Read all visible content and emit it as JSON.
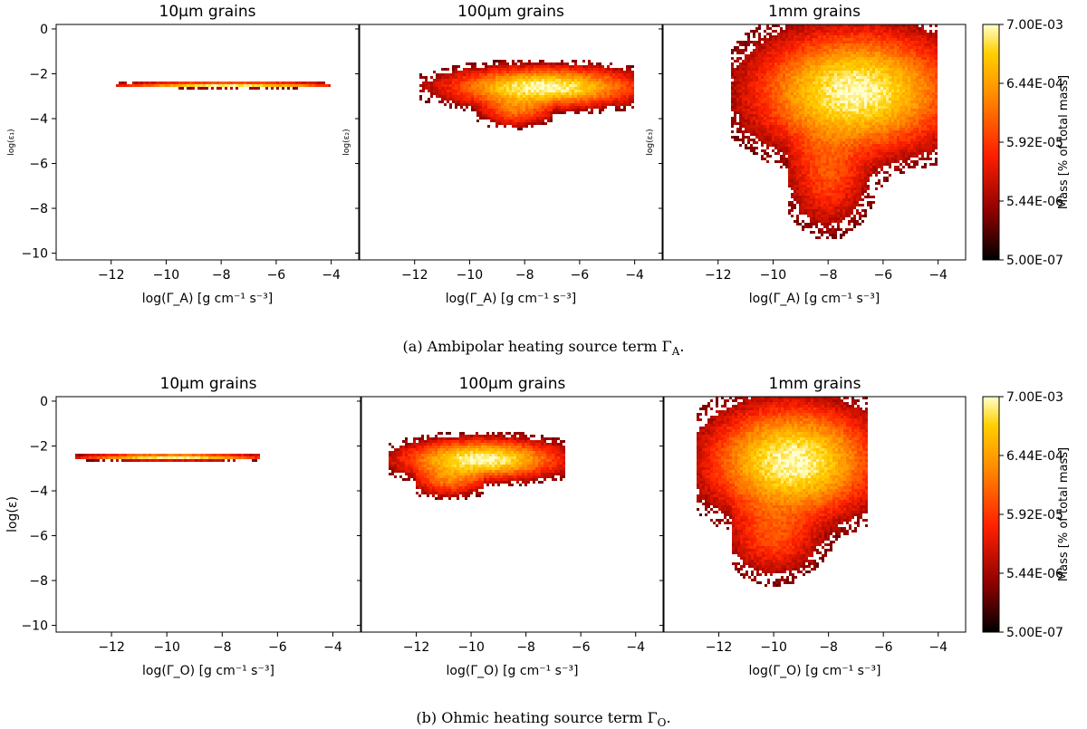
{
  "chart_data": [
    {
      "type": "heatmap",
      "title": "10$\\mu$m grains",
      "title_text": "10μm grains",
      "xlabel": "log(Γ_A) [g cm⁻¹ s⁻³]",
      "ylabel": "log(ε₁)",
      "xlim": [
        -14,
        -3
      ],
      "ylim": [
        -10.3,
        0.2
      ],
      "xticks": [
        -12,
        -10,
        -8,
        -6,
        -4
      ],
      "yticks": [
        0,
        -2,
        -4,
        -6,
        -8,
        -10
      ],
      "blobs": [
        {
          "cx": -7.7,
          "cy": -2.5,
          "sx": 2.0,
          "sy": 0.06,
          "peak": 1.0,
          "xmin": -11.8,
          "xmax": -4.0
        }
      ]
    },
    {
      "type": "heatmap",
      "title_text": "100μm grains",
      "xlabel": "log(Γ_A) [g cm⁻¹ s⁻³]",
      "ylabel": "log(ε₂)",
      "xlim": [
        -14,
        -3
      ],
      "ylim": [
        -10.3,
        0.2
      ],
      "xticks": [
        -12,
        -10,
        -8,
        -6,
        -4
      ],
      "yticks": [
        0,
        -2,
        -4,
        -6,
        -8,
        -10
      ],
      "blobs": [
        {
          "cx": -7.3,
          "cy": -2.6,
          "sx": 1.8,
          "sy": 0.45,
          "peak": 1.0,
          "xmin": -11.8,
          "xmax": -4.0
        },
        {
          "cx": -8.3,
          "cy": -3.6,
          "sx": 0.7,
          "sy": 0.4,
          "peak": 0.35,
          "xmin": -9.8,
          "xmax": -7.0
        }
      ]
    },
    {
      "type": "heatmap",
      "title_text": "1mm grains",
      "xlabel": "log(Γ_A) [g cm⁻¹ s⁻³]",
      "ylabel": "log(ε₃)",
      "xlim": [
        -14,
        -3
      ],
      "ylim": [
        -10.3,
        0.2
      ],
      "xticks": [
        -12,
        -10,
        -8,
        -6,
        -4
      ],
      "yticks": [
        0,
        -2,
        -4,
        -6,
        -8,
        -10
      ],
      "blobs": [
        {
          "cx": -7.0,
          "cy": -2.8,
          "sx": 1.9,
          "sy": 1.4,
          "peak": 1.0,
          "xmin": -11.5,
          "xmax": -4.0
        },
        {
          "cx": -8.0,
          "cy": -6.5,
          "sx": 0.8,
          "sy": 1.3,
          "peak": 0.25,
          "xmin": -9.5,
          "xmax": -5.5
        }
      ]
    },
    {
      "type": "heatmap",
      "title_text": "10μm grains",
      "xlabel": "log(Γ_O) [g cm⁻¹ s⁻³]",
      "ylabel": "log(ε)",
      "xlim": [
        -14,
        -3
      ],
      "ylim": [
        -10.3,
        0.2
      ],
      "xticks": [
        -12,
        -10,
        -8,
        -6,
        -4
      ],
      "yticks": [
        0,
        -2,
        -4,
        -6,
        -8,
        -10
      ],
      "blobs": [
        {
          "cx": -9.8,
          "cy": -2.5,
          "sx": 1.7,
          "sy": 0.07,
          "peak": 1.0,
          "xmin": -13.3,
          "xmax": -6.6
        }
      ]
    },
    {
      "type": "heatmap",
      "title_text": "100μm grains",
      "xlabel": "log(Γ_O) [g cm⁻¹ s⁻³]",
      "ylabel": "",
      "xlim": [
        -14,
        -3
      ],
      "ylim": [
        -10.3,
        0.2
      ],
      "xticks": [
        -12,
        -10,
        -8,
        -6,
        -4
      ],
      "yticks": [
        0,
        -2,
        -4,
        -6,
        -8,
        -10
      ],
      "blobs": [
        {
          "cx": -9.6,
          "cy": -2.6,
          "sx": 1.5,
          "sy": 0.45,
          "peak": 1.0,
          "xmin": -13.0,
          "xmax": -6.6
        },
        {
          "cx": -10.8,
          "cy": -3.5,
          "sx": 0.7,
          "sy": 0.4,
          "peak": 0.35,
          "xmin": -12.0,
          "xmax": -9.5
        }
      ]
    },
    {
      "type": "heatmap",
      "title_text": "1mm grains",
      "xlabel": "log(Γ_O) [g cm⁻¹ s⁻³]",
      "ylabel": "",
      "xlim": [
        -14,
        -3
      ],
      "ylim": [
        -10.3,
        0.2
      ],
      "xticks": [
        -12,
        -10,
        -8,
        -6,
        -4
      ],
      "yticks": [
        0,
        -2,
        -4,
        -6,
        -8,
        -10
      ],
      "blobs": [
        {
          "cx": -9.3,
          "cy": -2.7,
          "sx": 1.6,
          "sy": 1.3,
          "peak": 1.0,
          "xmin": -12.8,
          "xmax": -6.6
        },
        {
          "cx": -10.0,
          "cy": -6.0,
          "sx": 0.9,
          "sy": 1.0,
          "peak": 0.25,
          "xmin": -11.5,
          "xmax": -7.5
        }
      ]
    }
  ],
  "colorbar": {
    "label": "Mass [% of total mass]",
    "ticks": [
      "7.00E-03",
      "6.44E-04",
      "5.92E-05",
      "5.44E-06",
      "5.00E-07"
    ],
    "colors": [
      "#000000",
      "#8b0000",
      "#ff2000",
      "#ff8c00",
      "#ffd000",
      "#ffffcc"
    ]
  },
  "captions": {
    "a": "(a) Ambipolar heating source term Γ",
    "a_sub": "A",
    "b": "(b) Ohmic heating source term Γ",
    "b_sub": "O"
  }
}
